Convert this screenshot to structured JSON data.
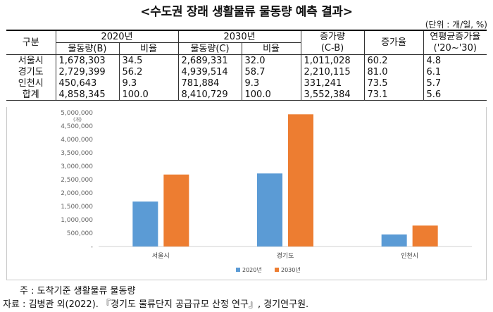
{
  "title": "<수도권 장래 생활물류 물동량 예측 결과>",
  "unit": "(단위 : 개/일, %)",
  "table": {
    "h_category": "구분",
    "h_2020": "2020년",
    "h_2030": "2030년",
    "h_increase": "증가량",
    "h_increase_sub": "(C-B)",
    "h_rate": "증가율",
    "h_cagr": "연평균증가율",
    "h_cagr_sub": "('20~'30)",
    "h_volume_b": "물동량(B)",
    "h_ratio_1": "비율",
    "h_volume_c": "물동량(C)",
    "h_ratio_2": "비율",
    "rows": [
      {
        "name": "서울시",
        "v2020": "1,678,303",
        "r2020": "34.5",
        "v2030": "2,689,331",
        "r2030": "32.0",
        "inc": "1,011,028",
        "rate": "60.2",
        "cagr": "4.8"
      },
      {
        "name": "경기도",
        "v2020": "2,729,399",
        "r2020": "56.2",
        "v2030": "4,939,514",
        "r2030": "58.7",
        "inc": "2,210,115",
        "rate": "81.0",
        "cagr": "6.1"
      },
      {
        "name": "인천시",
        "v2020": "450,643",
        "r2020": "9.3",
        "v2030": "781,884",
        "r2030": "9.3",
        "inc": "331,241",
        "rate": "73.5",
        "cagr": "5.7"
      },
      {
        "name": "합계",
        "v2020": "4,858,345",
        "r2020": "100.0",
        "v2030": "8,410,729",
        "r2030": "100.0",
        "inc": "3,552,384",
        "rate": "73.1",
        "cagr": "5.6"
      }
    ]
  },
  "chart_data": {
    "type": "bar",
    "categories": [
      "서울시",
      "경기도",
      "인천시"
    ],
    "series": [
      {
        "name": "2020년",
        "values": [
          1678303,
          2729399,
          450643
        ],
        "color": "#5b9bd5"
      },
      {
        "name": "2030년",
        "values": [
          2689331,
          4939514,
          781884
        ],
        "color": "#ed7d31"
      }
    ],
    "ylabel": "(개)",
    "ylim": [
      0,
      5000000
    ],
    "yticks": [
      0,
      500000,
      1000000,
      1500000,
      2000000,
      2500000,
      3000000,
      3500000,
      4000000,
      4500000,
      5000000
    ],
    "ytick_labels": [
      "-",
      "500,000",
      "1,000,000",
      "1,500,000",
      "2,000,000",
      "2,500,000",
      "3,000,000",
      "3,500,000",
      "4,000,000",
      "4,500,000",
      "5,000,000"
    ],
    "grid": false,
    "legend": "bottom"
  },
  "footnote": "주 : 도착기준 생활물류 물동량",
  "source": "자료 : 김병관 외(2022). 『경기도 물류단지 공급규모 산정 연구』, 경기연구원."
}
